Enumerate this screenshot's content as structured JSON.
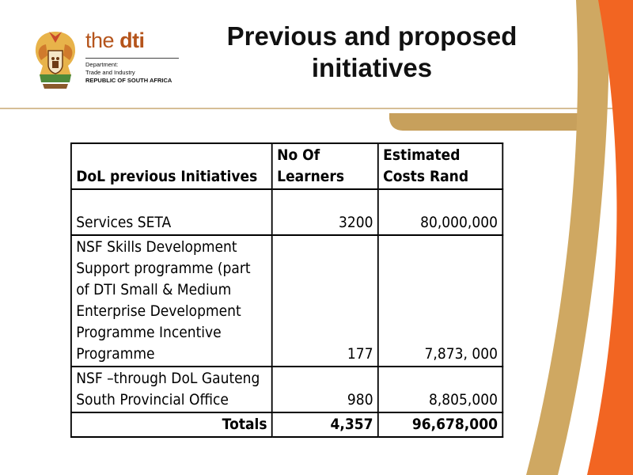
{
  "brand": {
    "name_light": "the",
    "name_bold": "dti",
    "sub_line1": "Department:",
    "sub_line2": "Trade and Industry",
    "sub_line3": "REPUBLIC OF SOUTH AFRICA"
  },
  "title": {
    "line1": "Previous and proposed",
    "line2": "initiatives"
  },
  "table": {
    "headers": [
      "DoL previous Initiatives",
      "No Of Learners",
      "Estimated Costs Rand"
    ],
    "rows": [
      [
        "Services SETA",
        "3200",
        "80,000,000"
      ],
      [
        "NSF Skills Development Support programme (part of DTI Small & Medium Enterprise Development Programme Incentive Programme",
        "177",
        "7,873, 000"
      ],
      [
        "NSF –through DoL Gauteng South Provincial Office",
        "980",
        "8,805,000"
      ]
    ],
    "totals": {
      "label": "Totals",
      "learners": "4,357",
      "cost": "96,678,000"
    }
  },
  "colors": {
    "accent_tan": "#c9a15e",
    "accent_orange": "#f26522",
    "brand": "#b5541b"
  }
}
